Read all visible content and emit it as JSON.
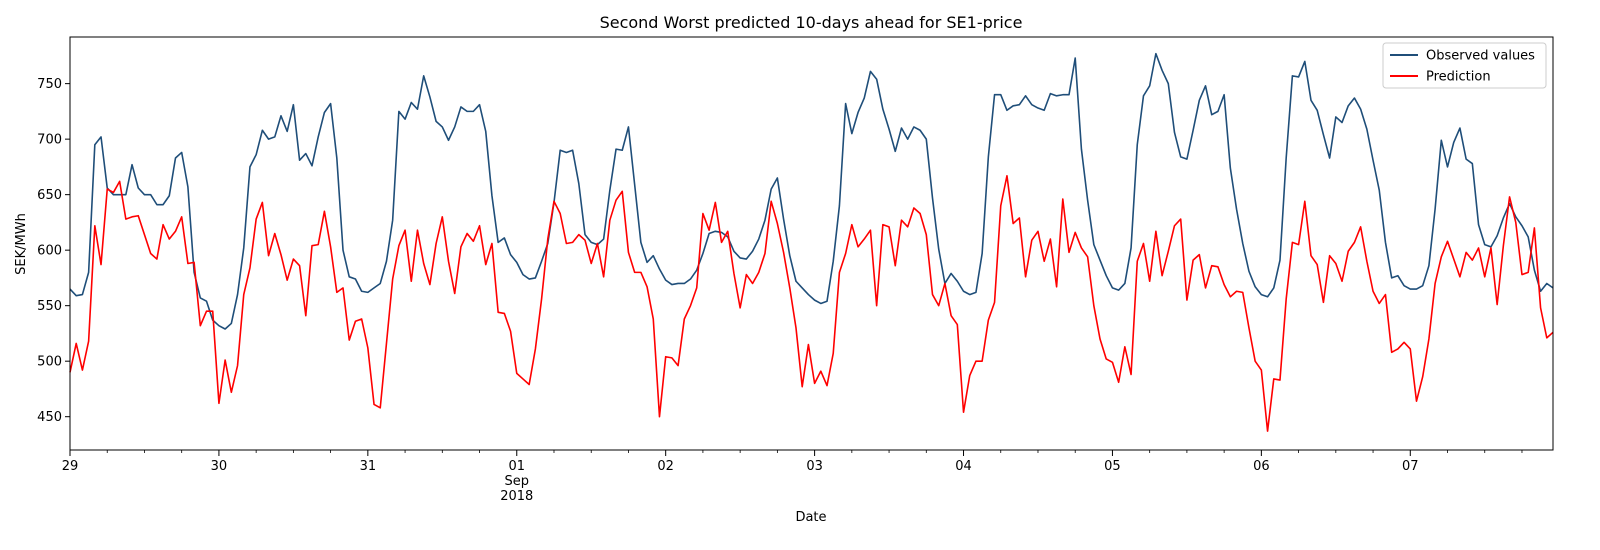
{
  "chart_data": {
    "type": "line",
    "title": "Second Worst predicted 10-days ahead for SE1-price",
    "xlabel": "Date",
    "ylabel": "SEK/MWh",
    "ylim": [
      420,
      792
    ],
    "yticks": [
      450,
      500,
      550,
      600,
      650,
      700,
      750
    ],
    "xlim": [
      "2018-08-29 00:00",
      "2018-09-07 23:00"
    ],
    "x_start": "2018-08-29 00:00",
    "x_step": "1 hour",
    "xticks": [
      {
        "day": 0,
        "label": "29"
      },
      {
        "day": 1,
        "label": "30"
      },
      {
        "day": 2,
        "label": "31"
      },
      {
        "day": 3,
        "label": "01",
        "sub1": "Sep",
        "sub2": "2018"
      },
      {
        "day": 4,
        "label": "02"
      },
      {
        "day": 5,
        "label": "03"
      },
      {
        "day": 6,
        "label": "04"
      },
      {
        "day": 7,
        "label": "05"
      },
      {
        "day": 8,
        "label": "06"
      },
      {
        "day": 9,
        "label": "07"
      }
    ],
    "grid": false,
    "legend_position": "top-right",
    "series": [
      {
        "name": "Observed values",
        "color": "#1f4e79",
        "values": [
          565,
          559,
          560,
          580,
          695,
          702,
          656,
          650,
          650,
          650,
          677,
          656,
          650,
          650,
          641,
          641,
          649,
          683,
          688,
          657,
          580,
          557,
          554,
          537,
          532,
          529,
          534,
          560,
          602,
          675,
          686,
          708,
          700,
          702,
          721,
          707,
          731,
          681,
          687,
          676,
          702,
          724,
          732,
          683,
          600,
          576,
          574,
          563,
          562,
          566,
          570,
          590,
          627,
          725,
          718,
          733,
          727,
          757,
          738,
          716,
          711,
          699,
          711,
          729,
          725,
          725,
          731,
          707,
          649,
          607,
          611,
          596,
          589,
          578,
          574,
          575,
          590,
          606,
          643,
          690,
          688,
          690,
          660,
          614,
          607,
          605,
          610,
          654,
          691,
          690,
          711,
          659,
          607,
          589,
          595,
          583,
          573,
          569,
          570,
          570,
          574,
          582,
          597,
          615,
          617,
          616,
          612,
          599,
          593,
          592,
          599,
          610,
          627,
          655,
          665,
          628,
          595,
          572,
          566,
          560,
          555,
          552,
          554,
          590,
          640,
          732,
          705,
          724,
          737,
          761,
          754,
          727,
          709,
          689,
          710,
          700,
          711,
          708,
          700,
          647,
          601,
          570,
          579,
          572,
          563,
          560,
          562,
          597,
          684,
          740,
          740,
          726,
          730,
          731,
          739,
          731,
          728,
          726,
          741,
          739,
          740,
          740,
          773,
          691,
          645,
          605,
          591,
          577,
          566,
          564,
          570,
          602,
          695,
          739,
          748,
          777,
          762,
          750,
          706,
          684,
          682,
          708,
          735,
          748,
          722,
          725,
          740,
          674,
          637,
          606,
          581,
          567,
          560,
          558,
          566,
          591,
          683,
          757,
          756,
          770,
          735,
          726,
          704,
          683,
          720,
          715,
          730,
          737,
          727,
          709,
          681,
          654,
          607,
          575,
          577,
          568,
          565,
          565,
          568,
          586,
          637,
          699,
          675,
          697,
          710,
          682,
          678,
          623,
          605,
          603,
          613,
          629,
          642,
          630,
          622,
          612,
          582,
          563,
          570,
          566
        ]
      },
      {
        "name": "Prediction",
        "color": "#ff0000",
        "values": [
          490,
          516,
          492,
          518,
          622,
          587,
          655,
          652,
          662,
          628,
          630,
          631,
          614,
          597,
          592,
          623,
          610,
          617,
          630,
          588,
          589,
          532,
          545,
          545,
          462,
          501,
          472,
          496,
          560,
          584,
          628,
          643,
          595,
          615,
          596,
          573,
          592,
          586,
          541,
          604,
          605,
          635,
          603,
          562,
          566,
          519,
          536,
          538,
          512,
          461,
          458,
          516,
          574,
          604,
          618,
          572,
          618,
          588,
          569,
          606,
          630,
          590,
          561,
          603,
          615,
          608,
          622,
          587,
          606,
          544,
          543,
          527,
          489,
          484,
          479,
          511,
          556,
          610,
          644,
          633,
          606,
          607,
          614,
          609,
          588,
          606,
          576,
          627,
          645,
          653,
          598,
          580,
          580,
          567,
          538,
          450,
          504,
          503,
          496,
          538,
          550,
          566,
          633,
          618,
          643,
          607,
          617,
          579,
          548,
          578,
          570,
          580,
          597,
          644,
          624,
          598,
          566,
          530,
          477,
          515,
          480,
          491,
          478,
          507,
          580,
          597,
          623,
          603,
          610,
          618,
          550,
          623,
          621,
          586,
          627,
          621,
          638,
          633,
          614,
          560,
          550,
          570,
          541,
          533,
          454,
          487,
          500,
          500,
          537,
          553,
          640,
          667,
          624,
          629,
          576,
          609,
          617,
          590,
          610,
          567,
          646,
          598,
          616,
          602,
          594,
          550,
          520,
          502,
          499,
          481,
          513,
          488,
          590,
          606,
          572,
          617,
          577,
          599,
          622,
          628,
          555,
          591,
          596,
          566,
          586,
          585,
          569,
          558,
          563,
          562,
          530,
          500,
          492,
          437,
          484,
          483,
          556,
          607,
          605,
          644,
          595,
          587,
          553,
          595,
          588,
          572,
          599,
          607,
          621,
          590,
          563,
          552,
          560,
          508,
          511,
          517,
          511,
          464,
          486,
          520,
          570,
          594,
          608,
          592,
          576,
          598,
          591,
          602,
          576,
          602,
          551,
          604,
          648,
          625,
          578,
          580,
          620,
          548,
          521,
          526
        ]
      }
    ]
  }
}
